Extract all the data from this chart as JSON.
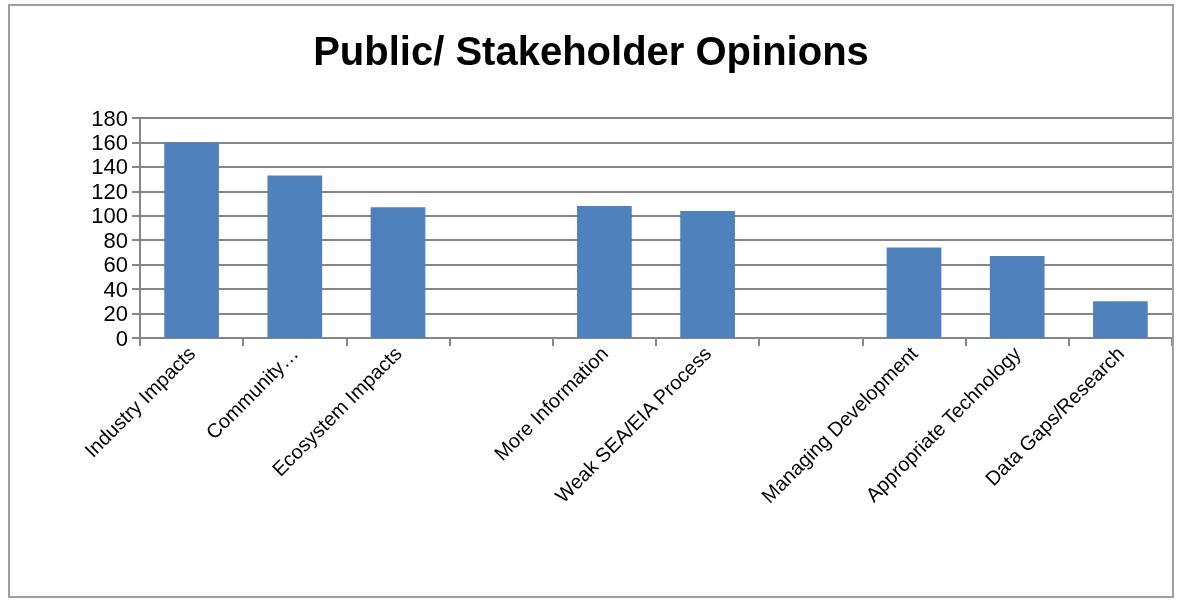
{
  "chart_data": {
    "type": "bar",
    "title": "Public/ Stakeholder Opinions",
    "categories": [
      "Industry Impacts",
      "Community…",
      "Ecosystem Impacts",
      null,
      "More Information",
      "Weak SEA/EIA Process",
      null,
      "Managing Development",
      "Appropriate Technology",
      "Data Gaps/Research"
    ],
    "values": [
      160,
      133,
      107,
      null,
      108,
      104,
      null,
      74,
      67,
      30
    ],
    "color": "#4f81bd",
    "ylim": [
      0,
      180
    ],
    "yticks": [
      0,
      20,
      40,
      60,
      80,
      100,
      120,
      140,
      160,
      180
    ],
    "grid": "y"
  }
}
